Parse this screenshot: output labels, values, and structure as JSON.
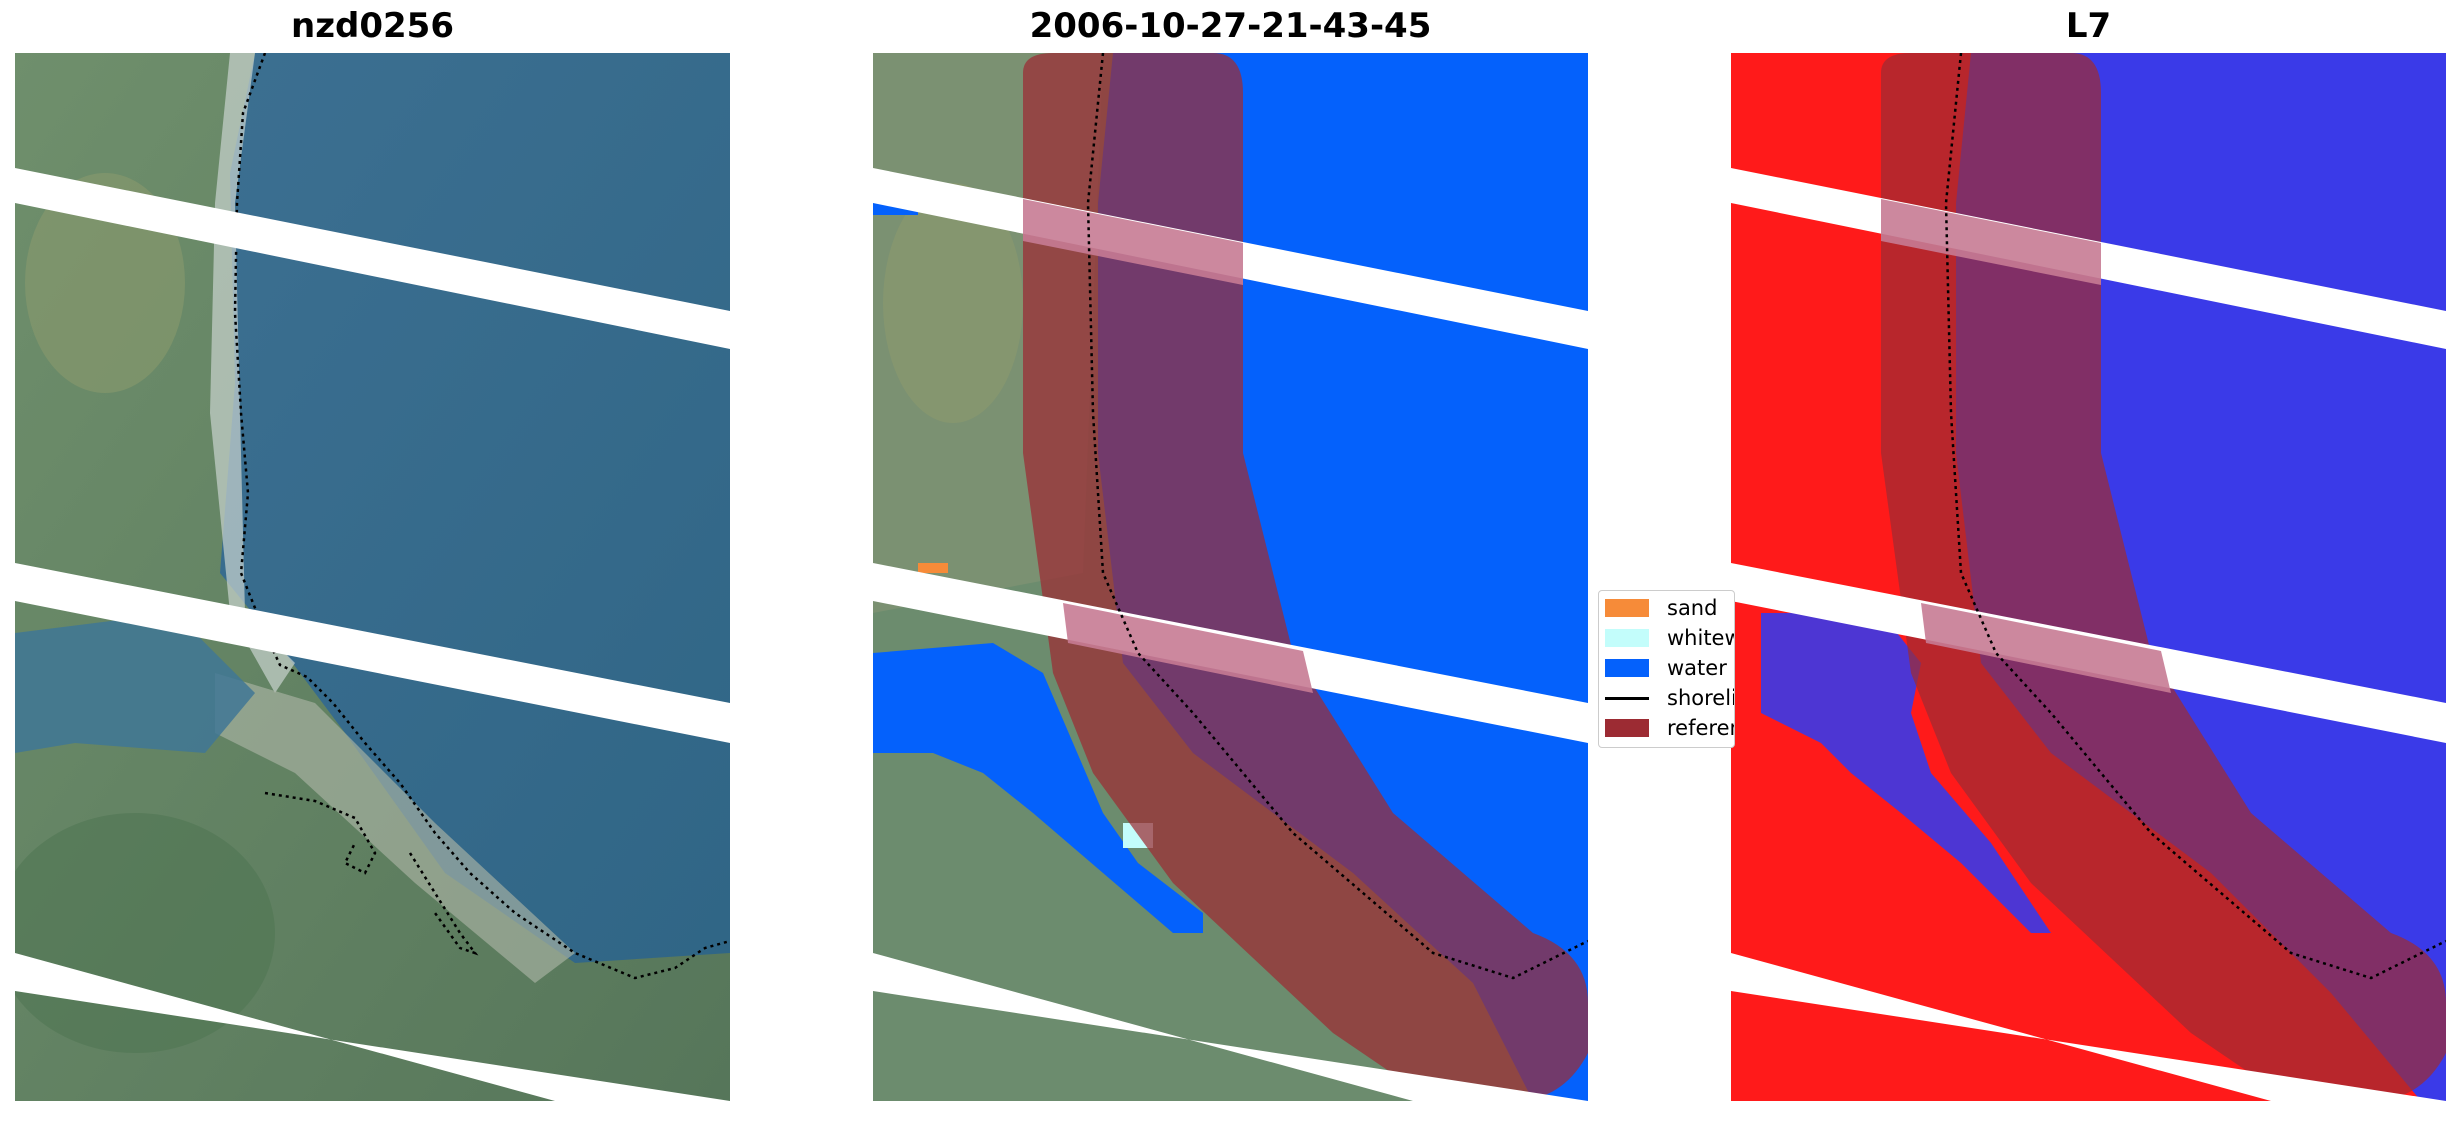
{
  "panels": [
    {
      "id": "rgb",
      "title": "nzd0256"
    },
    {
      "id": "classified",
      "title": "2006-10-27-21-43-45"
    },
    {
      "id": "index",
      "title": "L7"
    }
  ],
  "legend": {
    "items": [
      {
        "label": "sand",
        "color": "#f68b39",
        "kind": "patch"
      },
      {
        "label": "whitewater",
        "color": "#c3fdfb",
        "kind": "patch"
      },
      {
        "label": "water",
        "color": "#0461fc",
        "kind": "patch"
      },
      {
        "label": "shoreline",
        "color": "#000000",
        "kind": "line"
      },
      {
        "label": "reference",
        "color": "#9c2b33",
        "kind": "patch"
      }
    ]
  },
  "colors": {
    "water_class": "#0461fc",
    "reference_buffer": "#9c2b33",
    "buffer_overlay": "#6a1f95",
    "land_green": "#7d8d66",
    "sea_blue": "#3b6c8b",
    "index_red": "#ff1a1a",
    "index_blue": "#3a3ae8"
  }
}
